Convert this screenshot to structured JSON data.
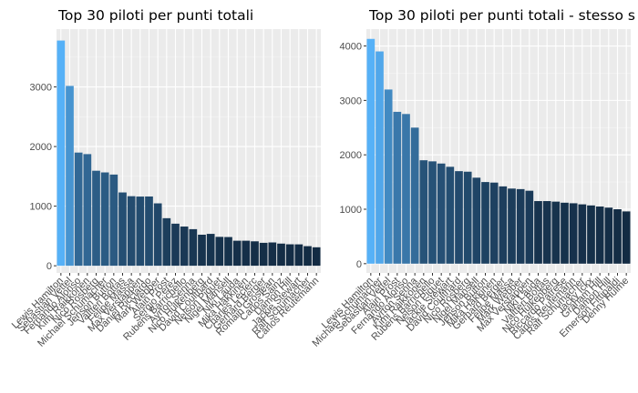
{
  "chart_data": [
    {
      "type": "bar",
      "title": "Top 30 piloti per punti totali",
      "xlabel": "",
      "ylabel": "",
      "ylim": [
        -120,
        3970
      ],
      "yticks": [
        0,
        1000,
        2000,
        3000
      ],
      "grid": true,
      "fill": "gradient",
      "gradient_colors": [
        "#56b1f7",
        "#132b43"
      ],
      "categories": [
        "Lewis Hamilton",
        "Sebastian Vettel",
        "Fernando Alonso",
        "Kimi Räikkönen",
        "Nico Rosberg",
        "Michael Schumacher",
        "Jenson Button",
        "Valtteri Bottas",
        "Felipe Massa",
        "Max Verstappen",
        "Daniel Ricciardo",
        "Mark Webber",
        "Alain Prost",
        "Sergio Pérez",
        "Rubens Barrichello",
        "Ayrton Senna",
        "Nico Hülkenberg",
        "David Coulthard",
        "Nelson Piquet",
        "Nigel Mansell",
        "Niki Lauda",
        "Mika Häkkinen",
        "Charles Leclerc",
        "Gerhard Berger",
        "Romain Grosjean",
        "Carlos Sainz",
        "Damon Hill",
        "Jackie Stewart",
        "Ralf Schumacher",
        "Carlos Reutemann"
      ],
      "values": [
        3778,
        3017,
        1899,
        1873,
        1594,
        1566,
        1530,
        1230,
        1167,
        1161,
        1162,
        1047,
        798,
        706,
        658,
        614,
        521,
        535,
        485,
        482,
        420,
        420,
        410,
        385,
        391,
        372,
        360,
        359,
        329,
        310
      ]
    },
    {
      "type": "bar",
      "title": "Top 30 piloti per punti totali - stesso s",
      "xlabel": "",
      "ylabel": "",
      "ylim": [
        -170,
        4310
      ],
      "yticks": [
        0,
        1000,
        2000,
        3000,
        4000
      ],
      "grid": true,
      "fill": "gradient",
      "gradient_colors": [
        "#56b1f7",
        "#132b43"
      ],
      "categories": [
        "Lewis Hamilton",
        "Michael Schumacher",
        "Sebastian Vettel",
        "Alain Prost",
        "Fernando Alonso",
        "Ayrton Senna",
        "Kimi Räikkönen",
        "Rubens Barrichello",
        "Nelson Piquet",
        "Jackie Stewart",
        "David Coulthard",
        "Nico Rosberg",
        "Nigel Mansell",
        "Jenson Button",
        "Mika Häkkinen",
        "Gerhard Berger",
        "Felipe Massa",
        "Mark Webber",
        "Max Verstappen",
        "Niki Lauda",
        "Valtteri Bottas",
        "Nico Hülkenberg",
        "Riccardo Patrese",
        "Carlos Reutemann",
        "Ralf Schumacher",
        "Jacky Ickx",
        "Graham Hill",
        "Damon Hill",
        "Emerson Fittipaldi",
        "Denny Hulme"
      ],
      "values": [
        4130,
        3900,
        3200,
        2790,
        2750,
        2500,
        1900,
        1880,
        1840,
        1780,
        1700,
        1690,
        1580,
        1500,
        1490,
        1420,
        1380,
        1370,
        1340,
        1150,
        1150,
        1140,
        1120,
        1110,
        1090,
        1070,
        1050,
        1030,
        1000,
        960
      ]
    }
  ]
}
